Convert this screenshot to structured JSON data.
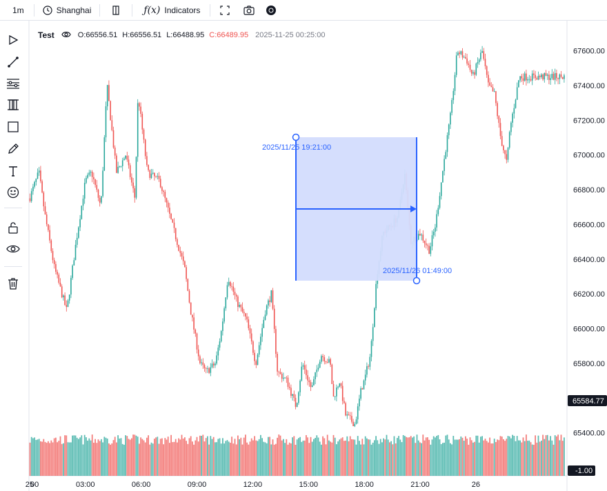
{
  "toolbar": {
    "interval": "1m",
    "timezone": "Shanghai",
    "indicators": "Indicators"
  },
  "legend": {
    "symbol": "Test",
    "open": "O:66556.51",
    "high": "H:66556.51",
    "low": "L:66488.95",
    "close": "C:66489.95",
    "time": "2025-11-25 00:25:00"
  },
  "colors": {
    "up": "#26a69a",
    "down": "#ef5350",
    "drawing": "#2962ff",
    "drawing_fill": "#d3dcfd"
  },
  "drawing": {
    "start_label": "2025/11/25 19:21:00",
    "end_label": "2025/11/26 01:49:00"
  },
  "price_labels": {
    "last": "65584.77",
    "volume": "-1.00"
  },
  "chart_data": {
    "type": "candlestick",
    "interval": "1m",
    "y_ticks": [
      "67600.00",
      "67400.00",
      "67200.00",
      "67000.00",
      "66800.00",
      "66600.00",
      "66400.00",
      "66200.00",
      "66000.00",
      "65800.00",
      "65400.00"
    ],
    "x_ticks": [
      "00",
      "25",
      "03:00",
      "06:00",
      "09:00",
      "12:00",
      "15:00",
      "18:00",
      "21:00",
      "26"
    ],
    "ylim": [
      65200,
      67800
    ],
    "path": [
      [
        "00:00",
        66750
      ],
      [
        "00:30",
        66900
      ],
      [
        "00:50",
        66650
      ],
      [
        "01:20",
        66350
      ],
      [
        "02:00",
        66100
      ],
      [
        "02:30",
        66500
      ],
      [
        "03:00",
        66850
      ],
      [
        "03:20",
        66900
      ],
      [
        "03:50",
        66700
      ],
      [
        "04:10",
        67400
      ],
      [
        "04:40",
        66900
      ],
      [
        "05:10",
        67000
      ],
      [
        "05:40",
        66750
      ],
      [
        "05:50",
        67350
      ],
      [
        "06:20",
        66900
      ],
      [
        "07:00",
        66850
      ],
      [
        "07:40",
        66600
      ],
      [
        "08:20",
        66350
      ],
      [
        "08:40",
        66100
      ],
      [
        "09:10",
        65800
      ],
      [
        "09:30",
        65750
      ],
      [
        "10:00",
        65800
      ],
      [
        "10:20",
        66000
      ],
      [
        "10:40",
        66300
      ],
      [
        "11:10",
        66150
      ],
      [
        "11:40",
        66050
      ],
      [
        "12:10",
        65800
      ],
      [
        "12:40",
        66100
      ],
      [
        "13:00",
        66200
      ],
      [
        "13:20",
        65750
      ],
      [
        "13:50",
        65700
      ],
      [
        "14:20",
        65550
      ],
      [
        "14:40",
        65800
      ],
      [
        "15:10",
        65650
      ],
      [
        "15:40",
        65850
      ],
      [
        "16:10",
        65800
      ],
      [
        "16:20",
        65600
      ],
      [
        "16:40",
        65700
      ],
      [
        "17:00",
        65500
      ],
      [
        "17:30",
        65450
      ],
      [
        "17:50",
        65650
      ],
      [
        "18:00",
        65700
      ],
      [
        "18:20",
        65850
      ],
      [
        "18:40",
        66300
      ],
      [
        "19:00",
        66550
      ],
      [
        "19:30",
        66600
      ],
      [
        "19:50",
        66650
      ],
      [
        "20:10",
        66900
      ],
      [
        "20:30",
        66500
      ],
      [
        "21:00",
        66550
      ],
      [
        "21:30",
        66450
      ],
      [
        "21:50",
        66600
      ],
      [
        "22:20",
        67000
      ],
      [
        "22:40",
        67250
      ],
      [
        "23:00",
        67600
      ],
      [
        "23:30",
        67550
      ],
      [
        "23:50",
        67450
      ],
      [
        "24:00",
        67500
      ],
      [
        "24:20",
        67600
      ],
      [
        "24:40",
        67400
      ],
      [
        "25:00",
        67350
      ],
      [
        "25:20",
        67100
      ],
      [
        "25:40",
        66950
      ],
      [
        "25:50",
        67150
      ],
      [
        "26:10",
        67350
      ],
      [
        "26:20",
        67450
      ]
    ]
  }
}
